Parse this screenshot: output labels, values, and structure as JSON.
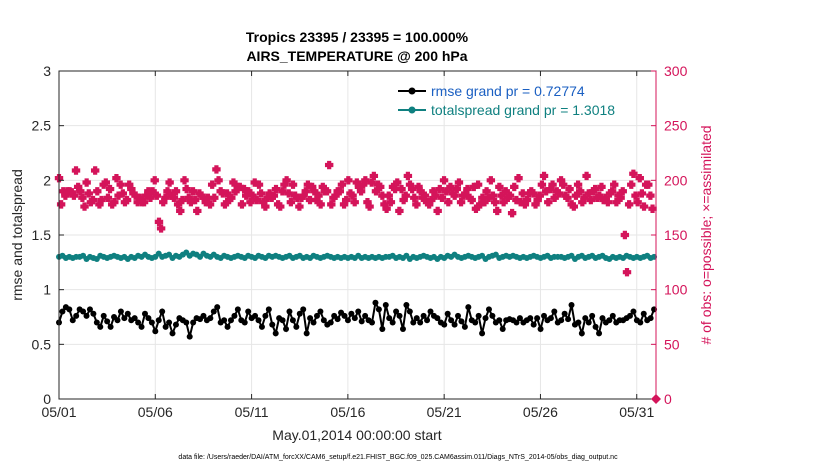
{
  "chart_data": {
    "type": "line",
    "title": "Tropics 23395 / 23395 = 100.000%",
    "subtitle": "AIRS_TEMPERATURE @ 200 hPa",
    "xlabel": "May.01,2014 00:00:00 start",
    "ylabel": "rmse and totalspread",
    "ylabel_right": "# of obs: o=possible; ×=assimilated",
    "footnote": "data file: /Users/raeder/DAI/ATM_forcXX/CAM6_setup/f.e21.FHIST_BGC.f09_025.CAM6assim.011/Diags_NTrS_2014-05/obs_diag_output.nc",
    "xlim": [
      1,
      32
    ],
    "ylim": [
      0,
      3
    ],
    "ylim_right": [
      0,
      300
    ],
    "x_ticks": [
      1,
      6,
      11,
      16,
      21,
      26,
      31
    ],
    "x_tick_labels": [
      "05/01",
      "05/06",
      "05/11",
      "05/16",
      "05/21",
      "05/26",
      "05/31"
    ],
    "y_ticks": [
      0,
      0.5,
      1,
      1.5,
      2,
      2.5,
      3
    ],
    "y_tick_labels": [
      "0",
      "0.5",
      "1",
      "1.5",
      "2",
      "2.5",
      "3"
    ],
    "y_ticks_right": [
      0,
      50,
      100,
      150,
      200,
      250,
      300
    ],
    "y_tick_labels_right": [
      "0",
      "50",
      "100",
      "150",
      "200",
      "250",
      "300"
    ],
    "grid": true,
    "legend_position": "top-right",
    "x_step": 0.25,
    "series": [
      {
        "name": "rmse grand pr = 0.72774",
        "axis": "left",
        "color": "#000000",
        "marker": "circle",
        "values": [
          0.7,
          0.8,
          0.84,
          0.82,
          0.72,
          0.76,
          0.82,
          0.8,
          0.76,
          0.82,
          0.78,
          0.7,
          0.66,
          0.76,
          0.71,
          0.66,
          0.75,
          0.72,
          0.8,
          0.74,
          0.78,
          0.72,
          0.74,
          0.7,
          0.66,
          0.78,
          0.74,
          0.7,
          0.62,
          0.72,
          0.8,
          0.66,
          0.7,
          0.6,
          0.68,
          0.74,
          0.72,
          0.7,
          0.57,
          0.7,
          0.74,
          0.73,
          0.76,
          0.72,
          0.74,
          0.8,
          0.84,
          0.7,
          0.72,
          0.66,
          0.72,
          0.76,
          0.82,
          0.72,
          0.7,
          0.8,
          0.74,
          0.76,
          0.72,
          0.66,
          0.76,
          0.82,
          0.68,
          0.6,
          0.74,
          0.72,
          0.64,
          0.8,
          0.72,
          0.66,
          0.78,
          0.82,
          0.6,
          0.74,
          0.7,
          0.76,
          0.8,
          0.72,
          0.68,
          0.7,
          0.76,
          0.73,
          0.79,
          0.76,
          0.72,
          0.78,
          0.74,
          0.8,
          0.71,
          0.76,
          0.72,
          0.7,
          0.88,
          0.82,
          0.64,
          0.86,
          0.74,
          0.7,
          0.8,
          0.76,
          0.64,
          0.86,
          0.8,
          0.7,
          0.74,
          0.7,
          0.76,
          0.72,
          0.8,
          0.76,
          0.74,
          0.7,
          0.68,
          0.78,
          0.72,
          0.68,
          0.76,
          0.71,
          0.66,
          0.84,
          0.72,
          0.7,
          0.76,
          0.6,
          0.74,
          0.82,
          0.76,
          0.7,
          0.72,
          0.64,
          0.72,
          0.73,
          0.72,
          0.7,
          0.74,
          0.7,
          0.72,
          0.74,
          0.68,
          0.74,
          0.64,
          0.76,
          0.72,
          0.74,
          0.8,
          0.7,
          0.72,
          0.78,
          0.73,
          0.86,
          0.68,
          0.7,
          0.6,
          0.74,
          0.7,
          0.76,
          0.66,
          0.6,
          0.74,
          0.7,
          0.72,
          0.76,
          0.7,
          0.72,
          0.72,
          0.74,
          0.76,
          0.8,
          0.72,
          0.7,
          0.78,
          0.72,
          0.74,
          0.82
        ]
      },
      {
        "name": "totalspread grand pr = 1.3018",
        "axis": "left",
        "color": "#0f8080",
        "marker": "circle",
        "values": [
          1.3,
          1.31,
          1.29,
          1.3,
          1.29,
          1.3,
          1.3,
          1.31,
          1.28,
          1.3,
          1.29,
          1.28,
          1.31,
          1.3,
          1.29,
          1.3,
          1.31,
          1.3,
          1.29,
          1.3,
          1.28,
          1.3,
          1.29,
          1.31,
          1.3,
          1.32,
          1.3,
          1.29,
          1.3,
          1.33,
          1.3,
          1.31,
          1.32,
          1.29,
          1.31,
          1.3,
          1.32,
          1.34,
          1.31,
          1.33,
          1.32,
          1.3,
          1.33,
          1.31,
          1.3,
          1.32,
          1.3,
          1.29,
          1.31,
          1.3,
          1.29,
          1.3,
          1.31,
          1.3,
          1.29,
          1.31,
          1.3,
          1.29,
          1.31,
          1.3,
          1.29,
          1.31,
          1.3,
          1.31,
          1.3,
          1.29,
          1.3,
          1.31,
          1.29,
          1.3,
          1.31,
          1.29,
          1.3,
          1.29,
          1.31,
          1.3,
          1.29,
          1.3,
          1.31,
          1.3,
          1.29,
          1.3,
          1.29,
          1.3,
          1.29,
          1.3,
          1.29,
          1.31,
          1.29,
          1.3,
          1.29,
          1.3,
          1.29,
          1.3,
          1.29,
          1.3,
          1.3,
          1.31,
          1.29,
          1.3,
          1.29,
          1.31,
          1.28,
          1.3,
          1.29,
          1.3,
          1.31,
          1.3,
          1.29,
          1.3,
          1.28,
          1.3,
          1.29,
          1.31,
          1.3,
          1.32,
          1.3,
          1.29,
          1.3,
          1.31,
          1.3,
          1.29,
          1.3,
          1.31,
          1.28,
          1.3,
          1.31,
          1.32,
          1.29,
          1.3,
          1.31,
          1.3,
          1.31,
          1.3,
          1.29,
          1.3,
          1.29,
          1.3,
          1.31,
          1.3,
          1.29,
          1.3,
          1.31,
          1.29,
          1.3,
          1.3,
          1.3,
          1.29,
          1.3,
          1.31,
          1.28,
          1.3,
          1.31,
          1.29,
          1.3,
          1.31,
          1.29,
          1.3,
          1.31,
          1.29,
          1.28,
          1.3,
          1.29,
          1.3,
          1.29,
          1.31,
          1.3,
          1.29,
          1.3,
          1.29,
          1.3,
          1.31,
          1.29,
          1.3
        ]
      },
      {
        "name": "# obs assimilated",
        "axis": "right",
        "color": "#d4145a",
        "marker": "plus",
        "values": [
          202,
          178,
          190,
          186,
          190,
          190,
          189,
          186,
          209,
          194,
          190,
          184,
          176,
          198,
          188,
          180,
          182,
          209,
          190,
          178,
          182,
          196,
          198,
          184,
          192,
          178,
          180,
          202,
          186,
          196,
          188,
          180,
          182,
          196,
          192,
          188,
          186,
          180,
          184,
          180,
          180,
          186,
          190,
          184,
          190,
          200,
          186,
          162,
          156,
          180,
          184,
          190,
          198,
          186,
          184,
          190,
          178,
          172,
          182,
          200,
          192,
          184,
          180,
          190,
          182,
          172,
          188,
          186,
          184,
          180,
          184,
          178,
          196,
          184,
          210,
          200,
          190,
          188,
          178,
          188,
          182,
          184,
          198,
          190,
          194,
          194,
          178,
          192,
          186,
          190,
          180,
          186,
          198,
          182,
          196,
          188,
          180,
          176,
          184,
          188,
          184,
          186,
          192,
          178,
          176,
          190,
          196,
          200,
          188,
          180,
          196,
          186,
          184,
          176,
          184,
          186,
          190,
          196,
          182,
          194,
          190,
          182,
          186,
          178,
          194,
          190,
          190,
          214,
          178,
          184,
          186,
          190,
          190,
          196,
          178,
          182,
          200,
          188,
          186,
          180,
          198,
          194,
          190,
          196,
          200,
          180,
          176,
          198,
          204,
          190,
          196,
          194,
          186,
          178,
          174,
          186,
          180,
          194,
          192,
          198,
          172,
          192,
          182,
          186,
          204,
          196,
          192,
          184,
          178,
          194,
          190,
          184,
          186,
          180,
          178,
          182,
          190,
          186,
          172,
          192,
          184,
          200,
          190,
          180,
          194,
          188,
          186,
          192,
          198,
          180,
          186,
          188,
          192,
          184,
          182,
          194,
          174,
          196,
          178,
          184,
          180,
          190,
          184,
          200,
          186,
          180,
          172,
          194,
          186,
          180,
          190,
          184,
          186,
          170,
          194,
          182,
          202,
          180,
          188,
          178,
          182,
          188,
          190,
          188,
          178,
          182,
          186,
          196,
          204,
          190,
          180,
          192,
          196,
          184,
          190,
          188,
          200,
          196,
          186,
          184,
          192,
          178,
          176,
          186,
          196,
          190,
          180,
          184,
          204,
          188,
          182,
          190,
          192,
          184,
          186,
          194,
          182,
          184,
          180,
          188,
          190,
          196,
          180,
          186,
          184,
          190,
          150,
          116,
          178,
          196,
          206,
          186,
          180,
          202,
          188,
          176,
          196,
          196,
          186,
          174
        ]
      }
    ]
  }
}
